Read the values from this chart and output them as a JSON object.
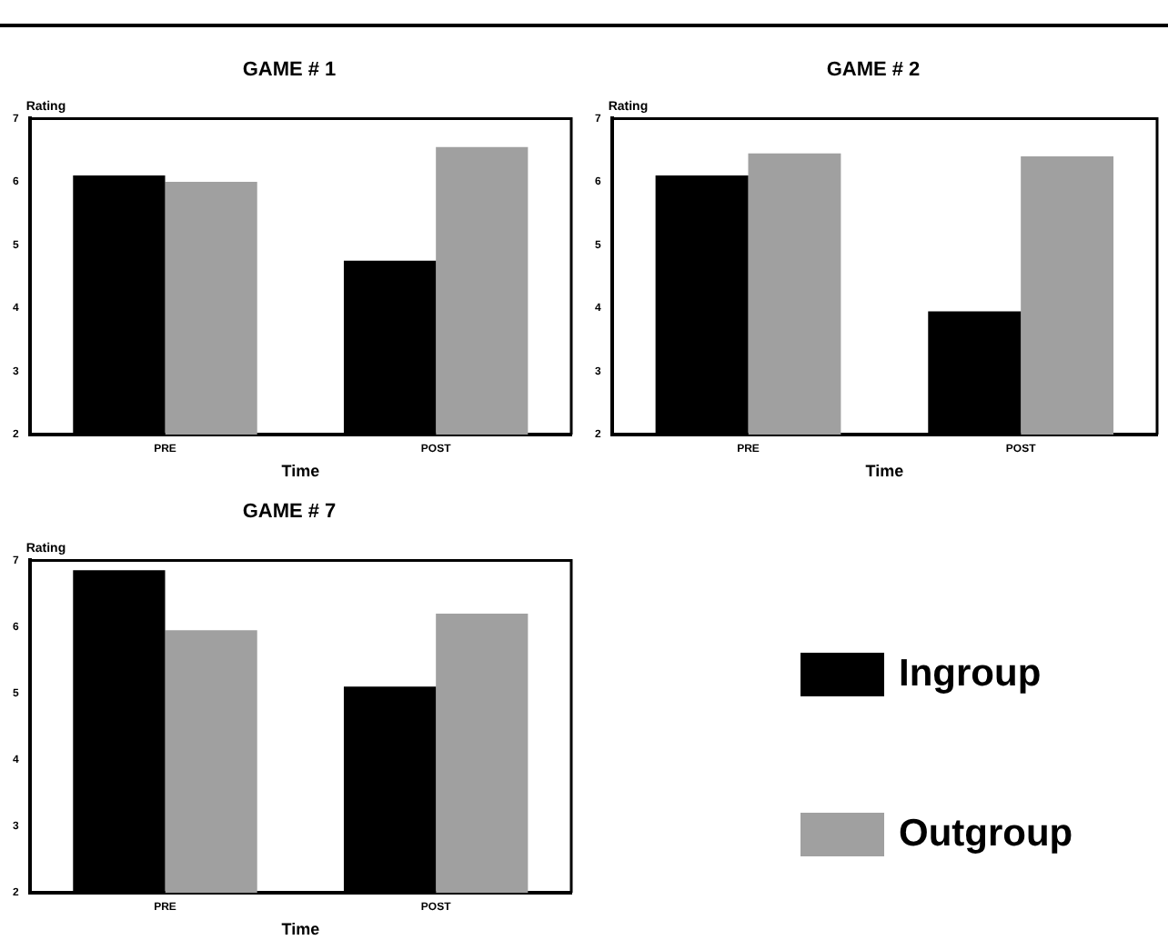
{
  "chart_data": [
    {
      "type": "bar",
      "title": "GAME # 1",
      "xlabel": "Time",
      "ylabel": "Rating",
      "categories": [
        "PRE",
        "POST"
      ],
      "ylim": [
        2,
        7
      ],
      "yticks": [
        2,
        3,
        4,
        5,
        6,
        7
      ],
      "grid": false,
      "series": [
        {
          "color": "#000000",
          "values": [
            6.1,
            4.75
          ]
        },
        {
          "color": "#a0a0a0",
          "values": [
            6.0,
            6.55
          ]
        }
      ]
    },
    {
      "type": "bar",
      "title": "GAME # 2",
      "xlabel": "Time",
      "ylabel": "Rating",
      "categories": [
        "PRE",
        "POST"
      ],
      "ylim": [
        2,
        7
      ],
      "yticks": [
        2,
        3,
        4,
        5,
        6,
        7
      ],
      "grid": false,
      "series": [
        {
          "color": "#000000",
          "values": [
            6.1,
            3.95
          ]
        },
        {
          "color": "#a0a0a0",
          "values": [
            6.45,
            6.4
          ]
        }
      ]
    },
    {
      "type": "bar",
      "title": "GAME # 7",
      "xlabel": "Time",
      "ylabel": "Rating",
      "categories": [
        "PRE",
        "POST"
      ],
      "ylim": [
        2,
        7
      ],
      "yticks": [
        2,
        3,
        4,
        5,
        6,
        7
      ],
      "grid": false,
      "legend": "right",
      "series": [
        {
          "name": "Ingroup",
          "color": "#000000",
          "values": [
            6.85,
            5.1
          ]
        },
        {
          "name": "Outgroup",
          "color": "#a0a0a0",
          "values": [
            5.95,
            6.2
          ]
        }
      ]
    }
  ]
}
